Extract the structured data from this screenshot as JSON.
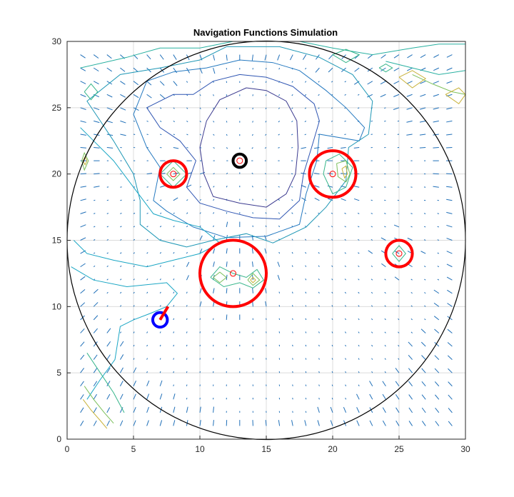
{
  "chart_data": {
    "type": "scatter",
    "title": "Navigation Functions Simulation",
    "xlabel": "",
    "ylabel": "",
    "xlim": [
      0,
      30
    ],
    "ylim": [
      0,
      30
    ],
    "xticks": [
      0,
      5,
      10,
      15,
      20,
      25,
      30
    ],
    "yticks": [
      0,
      5,
      10,
      15,
      20,
      25,
      30
    ],
    "grid": true,
    "workspace": {
      "center": [
        15,
        15
      ],
      "radius": 15,
      "color": "#000000"
    },
    "goal": {
      "center": [
        13,
        21
      ],
      "radius": 0.5,
      "color": "#000000"
    },
    "robot": {
      "center": [
        7,
        9
      ],
      "radius": 0.55,
      "color": "#0000ff",
      "heading": [
        7.6,
        10.0
      ],
      "heading_color": "#ff0000"
    },
    "obstacles": [
      {
        "center": [
          8,
          20
        ],
        "radius": 1.0,
        "color": "#ff0000"
      },
      {
        "center": [
          12.5,
          12.5
        ],
        "radius": 2.5,
        "color": "#ff0000"
      },
      {
        "center": [
          20,
          20
        ],
        "radius": 1.75,
        "color": "#ff0000"
      },
      {
        "center": [
          25,
          14
        ],
        "radius": 1.0,
        "color": "#ff0000"
      }
    ],
    "contour_levels": [
      {
        "color": "#3b3a8f",
        "points": [
          [
            13.5,
            26.5
          ],
          [
            15,
            26.3
          ],
          [
            16.5,
            25.5
          ],
          [
            17.3,
            24
          ],
          [
            17.4,
            22
          ],
          [
            17.2,
            20
          ],
          [
            16.5,
            18.5
          ],
          [
            15,
            17.5
          ],
          [
            13,
            17.8
          ],
          [
            11,
            18.3
          ],
          [
            10.3,
            20
          ],
          [
            10,
            22
          ],
          [
            10.5,
            24
          ],
          [
            11.5,
            25.6
          ],
          [
            13.5,
            26.5
          ]
        ]
      },
      {
        "color": "#2f55b2",
        "points": [
          [
            13,
            27.5
          ],
          [
            15,
            27.3
          ],
          [
            17,
            26.6
          ],
          [
            18.6,
            25.3
          ],
          [
            19,
            24
          ],
          [
            18.5,
            22.3
          ],
          [
            17.8,
            20
          ],
          [
            17.5,
            18
          ],
          [
            16,
            16.6
          ],
          [
            14,
            16.7
          ],
          [
            12,
            17.2
          ],
          [
            10,
            17.8
          ],
          [
            9,
            19
          ],
          [
            9.7,
            21
          ],
          [
            8.5,
            22.5
          ],
          [
            7,
            23.5
          ],
          [
            6,
            25
          ],
          [
            8,
            26
          ],
          [
            9.5,
            26
          ],
          [
            11,
            27
          ],
          [
            13,
            27.5
          ]
        ]
      },
      {
        "color": "#2579c0",
        "points": [
          [
            13,
            28.6
          ],
          [
            15.5,
            28.4
          ],
          [
            17.5,
            27.8
          ],
          [
            19.5,
            26.3
          ],
          [
            21,
            25
          ],
          [
            22.4,
            23.5
          ],
          [
            22,
            22.5
          ],
          [
            19,
            23
          ],
          [
            18.8,
            21
          ],
          [
            18,
            18.5
          ],
          [
            17.5,
            16.2
          ],
          [
            15,
            15.3
          ],
          [
            12,
            15.2
          ],
          [
            9.5,
            16
          ],
          [
            7.5,
            17.2
          ],
          [
            6.5,
            18
          ],
          [
            7,
            20.5
          ],
          [
            6,
            22
          ],
          [
            5,
            24.5
          ],
          [
            6,
            27
          ],
          [
            8,
            27.7
          ],
          [
            10.5,
            28
          ],
          [
            13,
            28.6
          ]
        ]
      },
      {
        "color": "#1e97b5",
        "points": [
          [
            12,
            29.6
          ],
          [
            16,
            29.6
          ],
          [
            19,
            28.8
          ],
          [
            21.5,
            27.5
          ],
          [
            23,
            25.5
          ],
          [
            22.7,
            23
          ],
          [
            21.2,
            22
          ],
          [
            21,
            19.5
          ],
          [
            19.5,
            17.5
          ],
          [
            18,
            16
          ],
          [
            15.5,
            14.8
          ],
          [
            13.5,
            15.5
          ],
          [
            11,
            15
          ],
          [
            9,
            14.5
          ],
          [
            7,
            15
          ],
          [
            5.5,
            16.2
          ],
          [
            5.5,
            18
          ],
          [
            5,
            20
          ],
          [
            3.5,
            22.5
          ],
          [
            2.5,
            24
          ],
          [
            1.5,
            25.5
          ],
          [
            4,
            27.5
          ],
          [
            7,
            28
          ],
          [
            10,
            28.6
          ],
          [
            12,
            29.6
          ]
        ]
      },
      {
        "color": "#28b0a0",
        "points": [
          [
            1,
            28
          ],
          [
            4.5,
            28.8
          ],
          [
            7,
            29.5
          ],
          [
            10,
            29.5
          ],
          [
            12.5,
            30
          ],
          [
            17.5,
            30
          ],
          [
            20,
            29.5
          ],
          [
            23,
            29
          ],
          [
            26,
            29.5
          ],
          [
            28,
            29.8
          ],
          [
            30,
            29.8
          ]
        ]
      },
      {
        "color": "#1aa6c4",
        "points": [
          [
            0.5,
            15
          ],
          [
            1.5,
            14
          ],
          [
            3.5,
            13.5
          ],
          [
            6,
            13
          ],
          [
            8,
            13.5
          ],
          [
            10,
            14
          ],
          [
            11.5,
            14.8
          ],
          [
            10,
            16
          ],
          [
            8,
            16.5
          ],
          [
            6.5,
            17
          ],
          [
            5,
            19
          ],
          [
            3.5,
            21
          ],
          [
            2,
            22.5
          ],
          [
            1,
            23.5
          ]
        ]
      },
      {
        "color": "#1aa6c4",
        "points": [
          [
            0.3,
            13
          ],
          [
            2,
            12
          ],
          [
            4.5,
            11.5
          ],
          [
            7.5,
            11.8
          ],
          [
            8.3,
            11
          ],
          [
            7.5,
            10
          ],
          [
            6.3,
            9.5
          ],
          [
            5,
            9
          ],
          [
            4,
            8.5
          ],
          [
            3.6,
            6
          ],
          [
            2.5,
            4.5
          ],
          [
            1.5,
            3
          ]
        ]
      },
      {
        "color": "#36b58a",
        "points": [
          [
            1.5,
            6.5
          ],
          [
            2.5,
            5
          ],
          [
            3.5,
            3.5
          ],
          [
            4.3,
            2
          ]
        ]
      },
      {
        "color": "#7bbf5a",
        "points": [
          [
            1.3,
            4
          ],
          [
            2,
            3
          ],
          [
            2.8,
            2
          ],
          [
            3.5,
            1.2
          ]
        ]
      },
      {
        "color": "#c8b23a",
        "points": [
          [
            1.2,
            3
          ],
          [
            1.8,
            2.2
          ],
          [
            2.5,
            1.4
          ],
          [
            3,
            0.8
          ]
        ]
      },
      {
        "color": "#28b0a0",
        "points": [
          [
            24,
            28.5
          ],
          [
            26,
            28
          ],
          [
            28,
            27.5
          ],
          [
            30,
            27.8
          ]
        ]
      },
      {
        "color": "#7bbf5a",
        "points": [
          [
            26,
            27.5
          ],
          [
            27.5,
            26.8
          ],
          [
            29,
            26.2
          ],
          [
            30,
            26
          ]
        ]
      },
      {
        "color": "#c8b23a",
        "points": [
          [
            25,
            27.3
          ],
          [
            26,
            27.8
          ],
          [
            27,
            27.2
          ],
          [
            26,
            26.5
          ],
          [
            25,
            27.3
          ]
        ]
      },
      {
        "color": "#c8b23a",
        "points": [
          [
            28.5,
            26
          ],
          [
            29.5,
            26.5
          ],
          [
            30,
            26
          ],
          [
            29.5,
            25.3
          ],
          [
            28.5,
            26
          ]
        ]
      },
      {
        "color": "#36b58a",
        "points": [
          [
            23.5,
            28
          ],
          [
            24,
            28.3
          ],
          [
            24.5,
            28
          ],
          [
            24,
            27.7
          ],
          [
            23.5,
            28
          ]
        ]
      },
      {
        "color": "#36b58a",
        "points": [
          [
            20,
            29
          ],
          [
            21,
            29.4
          ],
          [
            22,
            29
          ],
          [
            21,
            28.4
          ],
          [
            20,
            29
          ]
        ]
      },
      {
        "color": "#36b58a",
        "points": [
          [
            7,
            20
          ],
          [
            8,
            21
          ],
          [
            9,
            20
          ],
          [
            8,
            19
          ],
          [
            7,
            20
          ]
        ]
      },
      {
        "color": "#7bbf5a",
        "points": [
          [
            7.5,
            20
          ],
          [
            8,
            20.5
          ],
          [
            8.5,
            20
          ],
          [
            8,
            19.5
          ],
          [
            7.5,
            20
          ]
        ]
      },
      {
        "color": "#36b58a",
        "points": [
          [
            19.5,
            21
          ],
          [
            20.5,
            21.5
          ],
          [
            21.5,
            20.5
          ],
          [
            21,
            19
          ],
          [
            20,
            18.5
          ],
          [
            19.3,
            20
          ],
          [
            19.5,
            21
          ]
        ]
      },
      {
        "color": "#7bbf5a",
        "points": [
          [
            20.3,
            20.8
          ],
          [
            21,
            21
          ],
          [
            21.3,
            20
          ],
          [
            21,
            19.4
          ],
          [
            20.4,
            19.8
          ],
          [
            20.3,
            20.8
          ]
        ]
      },
      {
        "color": "#c8b23a",
        "points": [
          [
            20.7,
            20.4
          ],
          [
            21,
            20.6
          ],
          [
            21.1,
            20
          ],
          [
            20.9,
            19.7
          ],
          [
            20.7,
            20.4
          ]
        ]
      },
      {
        "color": "#36b58a",
        "points": [
          [
            10.8,
            12.2
          ],
          [
            11.5,
            13
          ],
          [
            12.5,
            12.5
          ],
          [
            13.5,
            12.2
          ],
          [
            14.3,
            12.8
          ],
          [
            14.8,
            12
          ],
          [
            14,
            11.4
          ],
          [
            13,
            11.8
          ],
          [
            11.8,
            11.5
          ],
          [
            10.8,
            12.2
          ]
        ]
      },
      {
        "color": "#7bbf5a",
        "points": [
          [
            11,
            12.2
          ],
          [
            11.5,
            12.6
          ],
          [
            12,
            12.2
          ],
          [
            11.5,
            11.8
          ],
          [
            11,
            12.2
          ]
        ]
      },
      {
        "color": "#7bbf5a",
        "points": [
          [
            13.6,
            12
          ],
          [
            14,
            12.5
          ],
          [
            14.5,
            12
          ],
          [
            14,
            11.6
          ],
          [
            13.6,
            12
          ]
        ]
      },
      {
        "color": "#c8b23a",
        "points": [
          [
            13.8,
            12
          ],
          [
            14,
            12.2
          ],
          [
            14.2,
            12
          ],
          [
            14,
            11.8
          ],
          [
            13.8,
            12
          ]
        ]
      },
      {
        "color": "#36b58a",
        "points": [
          [
            24.5,
            14
          ],
          [
            25,
            14.6
          ],
          [
            25.5,
            14
          ],
          [
            25,
            13.4
          ],
          [
            24.5,
            14
          ]
        ]
      },
      {
        "color": "#36b58a",
        "points": [
          [
            1.3,
            26.2
          ],
          [
            1.8,
            26.8
          ],
          [
            2.3,
            26.2
          ],
          [
            1.8,
            25.6
          ],
          [
            1.3,
            26.2
          ]
        ]
      },
      {
        "color": "#7bbf5a",
        "points": [
          [
            1.1,
            21
          ],
          [
            1.3,
            21.6
          ],
          [
            1.6,
            21
          ],
          [
            1.3,
            20.3
          ],
          [
            1.1,
            21
          ]
        ]
      },
      {
        "color": "#c8b23a",
        "points": [
          [
            1.2,
            21
          ],
          [
            1.35,
            21.3
          ],
          [
            1.5,
            21
          ],
          [
            1.35,
            20.7
          ],
          [
            1.2,
            21
          ]
        ]
      }
    ]
  }
}
